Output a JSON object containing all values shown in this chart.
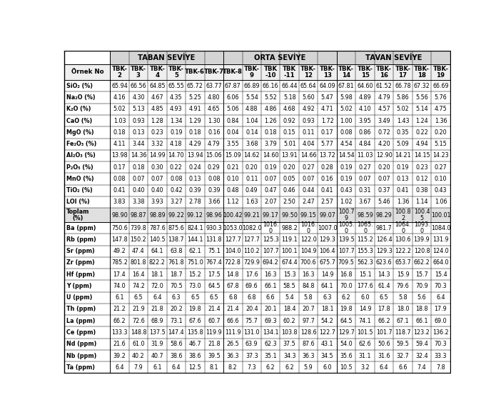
{
  "col_headers": [
    "Örnek No",
    "TBK-\n2",
    "TBK-\n3",
    "TBK-\n4",
    "TBK-\n5",
    "TBK-6",
    "TBK-7",
    "TBK-8",
    "TBK-\n9",
    "TBK\n-10",
    "TBK\n-11",
    "TBK-\n12",
    "TBK-\n13",
    "TBK-\n14",
    "TBK-\n15",
    "TBK-\n16",
    "TBK-\n17",
    "TBK-\n18",
    "TBK-\n19"
  ],
  "group_headers": [
    {
      "label": "TABAN SEVİYE",
      "start": 1,
      "end": 6
    },
    {
      "label": "ORTA SEVİYE",
      "start": 7,
      "end": 12
    },
    {
      "label": "TAVAN SEVİYE",
      "start": 13,
      "end": 18
    }
  ],
  "row_labels": [
    "SiO₂ (%)",
    "Na₂O (%)",
    "K₂O (%)",
    "CaO (%)",
    "MgO (%)",
    "Fe₂O₃ (%)",
    "Al₂O₃ (%)",
    "P₂O₅ (%)",
    "MnO (%)",
    "TiO₂ (%)",
    "LOI (%)",
    "Toplam\n(%)",
    "Ba (ppm)",
    "Rb (ppm)",
    "Sr (ppm)",
    "Zr (ppm)",
    "Hf (ppm)",
    "Y (ppm)",
    "U (ppm)",
    "Th (ppm)",
    "La (ppm)",
    "Ce (ppm)",
    "Nd (ppm)",
    "Nb (ppm)",
    "Ta (ppm)"
  ],
  "data": [
    [
      "65.94",
      "66.56",
      "64.85",
      "65.55",
      "65.72",
      "63.77",
      "67.87",
      "66.89",
      "66.16",
      "66.44",
      "65.64",
      "64.09",
      "67.81",
      "64.60",
      "61.52",
      "66.78",
      "67.32",
      "66.69"
    ],
    [
      "4.16",
      "4.30",
      "4.67",
      "4.35",
      "5.25",
      "4.80",
      "6.06",
      "5.54",
      "5.52",
      "5.18",
      "5.60",
      "5.47",
      "5.98",
      "4.89",
      "4.79",
      "5.86",
      "5.56",
      "5.76"
    ],
    [
      "5.02",
      "5.13",
      "4.85",
      "4.93",
      "4.91",
      "4.65",
      "5.06",
      "4.88",
      "4.86",
      "4.68",
      "4.92",
      "4.71",
      "5.02",
      "4.10",
      "4.57",
      "5.02",
      "5.14",
      "4.75"
    ],
    [
      "1.03",
      "0.93",
      "1.28",
      "1.34",
      "1.29",
      "1.30",
      "0.84",
      "1.04",
      "1.26",
      "0.92",
      "0.93",
      "1.72",
      "1.00",
      "3.95",
      "3.49",
      "1.43",
      "1.24",
      "1.36"
    ],
    [
      "0.18",
      "0.13",
      "0.23",
      "0.19",
      "0.18",
      "0.16",
      "0.04",
      "0.14",
      "0.18",
      "0.15",
      "0.11",
      "0.17",
      "0.08",
      "0.86",
      "0.72",
      "0.35",
      "0.22",
      "0.20"
    ],
    [
      "4.11",
      "3.44",
      "3.32",
      "4.18",
      "4.29",
      "4.79",
      "3.55",
      "3.68",
      "3.79",
      "5.01",
      "4.04",
      "5.77",
      "4.54",
      "4.84",
      "4.20",
      "5.09",
      "4.94",
      "5.15"
    ],
    [
      "13.98",
      "14.36",
      "14.99",
      "14.70",
      "13.94",
      "15.06",
      "15.09",
      "14.62",
      "14.60",
      "13.91",
      "14.66",
      "13.72",
      "14.54",
      "11.03",
      "12.90",
      "14.21",
      "14.15",
      "14.23"
    ],
    [
      "0.17",
      "0.18",
      "0.30",
      "0.22",
      "0.24",
      "0.29",
      "0.21",
      "0.20",
      "0.19",
      "0.20",
      "0.27",
      "0.28",
      "0.19",
      "0.27",
      "0.20",
      "0.19",
      "0.23",
      "0.27"
    ],
    [
      "0.08",
      "0.07",
      "0.07",
      "0.08",
      "0.13",
      "0.08",
      "0.10",
      "0.11",
      "0.07",
      "0.05",
      "0.07",
      "0.16",
      "0.19",
      "0.07",
      "0.07",
      "0.13",
      "0.12",
      "0.10"
    ],
    [
      "0.41",
      "0.40",
      "0.40",
      "0.42",
      "0.39",
      "0.39",
      "0.48",
      "0.49",
      "0.47",
      "0.46",
      "0.44",
      "0.41",
      "0.43",
      "0.31",
      "0.37",
      "0.41",
      "0.38",
      "0.43"
    ],
    [
      "3.83",
      "3.38",
      "3.93",
      "3.27",
      "2.78",
      "3.66",
      "1.12",
      "1.63",
      "2.07",
      "2.50",
      "2.47",
      "2.57",
      "1.02",
      "3.67",
      "5.46",
      "1.36",
      "1.14",
      "1.06"
    ],
    [
      "98.90",
      "98.87",
      "98.89",
      "99.22",
      "99.12",
      "98.96",
      "100.42",
      "99.21",
      "99.17",
      "99.50",
      "99.15",
      "99.07",
      "100.7\n9",
      "98.59",
      "98.29",
      "100.8\n2",
      "100.4\n5",
      "100.01"
    ],
    [
      "750.6",
      "739.8",
      "787.6",
      "875.6",
      "824.1",
      "930.3",
      "1053.0",
      "1082.0",
      "1016.\n0",
      "988.2",
      "1016.\n0",
      "1007.0",
      "1005.\n0",
      "1065.\n0",
      "981.7",
      "1064.\n0",
      "1093.\n0",
      "1084.0"
    ],
    [
      "147.8",
      "150.2",
      "140.5",
      "138.7",
      "144.1",
      "131.8",
      "127.7",
      "127.7",
      "125.3",
      "119.1",
      "122.0",
      "129.3",
      "139.5",
      "115.2",
      "126.4",
      "130.6",
      "139.9",
      "131.9"
    ],
    [
      "49.2",
      "47.4",
      "64.1",
      "63.8",
      "62.1",
      "75.1",
      "104.0",
      "110.2",
      "107.7",
      "100.1",
      "104.9",
      "106.4",
      "107.7",
      "155.3",
      "129.3",
      "122.2",
      "120.8",
      "124.0"
    ],
    [
      "785.2",
      "801.8",
      "822.2",
      "761.8",
      "751.0",
      "767.4",
      "722.8",
      "729.9",
      "694.2",
      "674.4",
      "700.6",
      "675.7",
      "709.5",
      "562.3",
      "623.6",
      "653.7",
      "662.2",
      "664.0"
    ],
    [
      "17.4",
      "16.4",
      "18.1",
      "18.7",
      "15.2",
      "17.5",
      "14.8",
      "17.6",
      "16.3",
      "15.3",
      "16.3",
      "14.9",
      "16.8",
      "15.1",
      "14.3",
      "15.9",
      "15.7",
      "15.4"
    ],
    [
      "74.0",
      "74.2",
      "72.0",
      "70.5",
      "73.0",
      "64.5",
      "67.8",
      "69.6",
      "66.1",
      "58.5",
      "84.8",
      "64.1",
      "70.0",
      "177.6",
      "61.4",
      "79.6",
      "70.9",
      "70.3"
    ],
    [
      "6.1",
      "6.5",
      "6.4",
      "6.3",
      "6.5",
      "6.5",
      "6.8",
      "6.8",
      "6.6",
      "5.4",
      "5.8",
      "6.3",
      "6.2",
      "6.0",
      "6.5",
      "5.8",
      "5.6",
      "6.4"
    ],
    [
      "21.2",
      "21.9",
      "21.8",
      "20.2",
      "19.8",
      "21.4",
      "21.4",
      "20.4",
      "20.1",
      "18.4",
      "20.7",
      "18.1",
      "19.8",
      "14.9",
      "17.8",
      "18.0",
      "18.8",
      "17.9"
    ],
    [
      "66.2",
      "72.6",
      "68.9",
      "73.1",
      "67.6",
      "60.7",
      "66.6",
      "75.7",
      "69.3",
      "60.2",
      "97.7",
      "54.2",
      "64.5",
      "74.1",
      "66.2",
      "67.1",
      "66.1",
      "69.0"
    ],
    [
      "133.3",
      "148.8",
      "137.5",
      "147.4",
      "135.8",
      "119.9",
      "111.9",
      "131.0",
      "134.1",
      "103.8",
      "128.6",
      "122.7",
      "129.7",
      "101.5",
      "101.7",
      "118.7",
      "123.2",
      "136.2"
    ],
    [
      "21.6",
      "61.0",
      "31.9",
      "58.6",
      "46.7",
      "21.8",
      "26.5",
      "63.9",
      "62.3",
      "37.5",
      "87.6",
      "43.1",
      "54.0",
      "62.6",
      "50.6",
      "59.5",
      "59.4",
      "70.3"
    ],
    [
      "39.2",
      "40.2",
      "40.7",
      "38.6",
      "38.6",
      "39.5",
      "36.3",
      "37.3",
      "35.1",
      "34.3",
      "36.3",
      "34.5",
      "35.6",
      "31.1",
      "31.6",
      "32.7",
      "32.4",
      "33.3"
    ],
    [
      "6.4",
      "7.9",
      "6.1",
      "6.4",
      "12.5",
      "8.1",
      "8.2",
      "7.3",
      "6.2",
      "6.2",
      "5.9",
      "6.0",
      "10.5",
      "3.2",
      "6.4",
      "6.6",
      "7.4",
      "7.8"
    ]
  ],
  "header_bg": "#d4d4d4",
  "subheader_bg": "#efefef",
  "toplam_bg": "#e0e0e0",
  "white_bg": "#ffffff",
  "font_size": 5.8,
  "header_font_size": 7.2,
  "col_header_font_size": 6.2
}
